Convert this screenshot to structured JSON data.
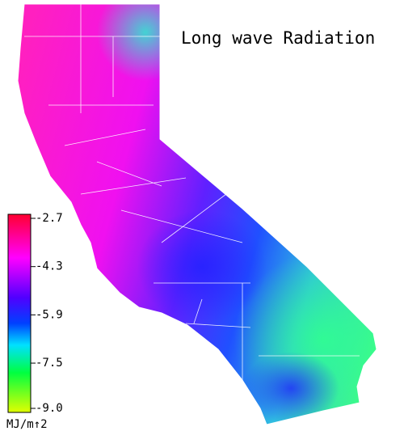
{
  "title": "Long wave Radiation",
  "legend": {
    "ticks": [
      -2.7,
      -4.3,
      -5.9,
      -7.5,
      {
        "value": -9,
        "label": "-9.0"
      }
    ],
    "unit": "MJ/m↑2"
  }
}
